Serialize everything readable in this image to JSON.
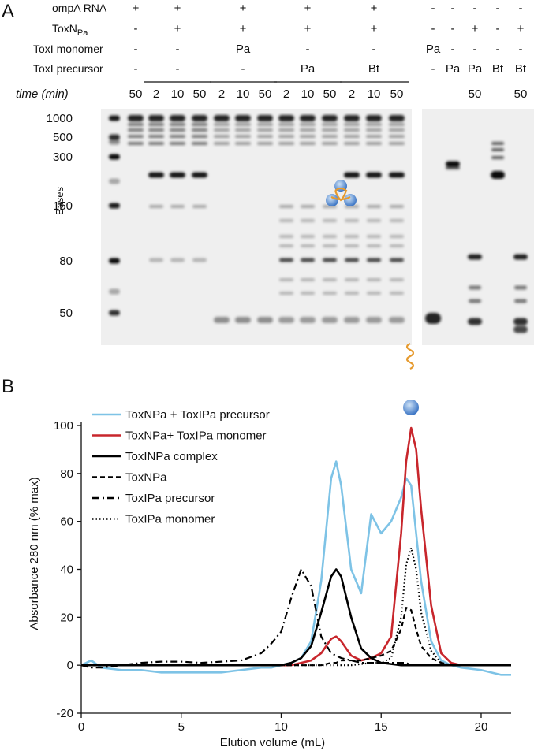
{
  "panel_a": {
    "label": "A",
    "rows": [
      {
        "label": "ompA RNA"
      },
      {
        "main": "ToxN",
        "sub": "Pa"
      },
      {
        "label": "ToxI monomer"
      },
      {
        "label": "ToxI precursor"
      },
      {
        "label": "time (min)"
      }
    ],
    "groups": [
      {
        "marks": [
          "+",
          "-",
          "-",
          "-"
        ],
        "times": [
          50
        ]
      },
      {
        "marks": [
          "+",
          "+",
          "-",
          "-"
        ],
        "times": [
          2,
          10,
          50
        ]
      },
      {
        "marks": [
          "+",
          "+",
          "Pa",
          "-"
        ],
        "times": [
          2,
          10,
          50
        ]
      },
      {
        "marks": [
          "+",
          "+",
          "-",
          "Pa"
        ],
        "times": [
          2,
          10,
          50
        ]
      },
      {
        "marks": [
          "+",
          "+",
          "-",
          "Bt"
        ],
        "times": [
          2,
          10,
          50
        ]
      }
    ],
    "right_lanes": [
      {
        "marks": [
          "-",
          "-",
          "Pa",
          "-"
        ]
      },
      {
        "marks": [
          "-",
          "-",
          "-",
          "Pa"
        ]
      },
      {
        "marks": [
          "-",
          "+",
          "-",
          "Pa"
        ],
        "time": 50
      },
      {
        "marks": [
          "-",
          "-",
          "-",
          "Bt"
        ]
      },
      {
        "marks": [
          "-",
          "+",
          "-",
          "Bt"
        ],
        "time": 50
      }
    ],
    "ladder": [
      1000,
      500,
      300,
      150,
      80,
      50
    ],
    "ladder_axis": "Bases"
  },
  "panel_b_label": "B",
  "chart_data": {
    "type": "line",
    "xlabel": "Elution volume (mL)",
    "ylabel": "Absorbance 280 nm (% max)",
    "xlim": [
      0,
      21.5
    ],
    "ylim": [
      -20,
      100
    ],
    "xticks": [
      0,
      5,
      10,
      15,
      20
    ],
    "yticks": [
      -20,
      0,
      20,
      40,
      60,
      80,
      100
    ],
    "legend": "upper left",
    "x": [
      0,
      0.5,
      1,
      2,
      3,
      4,
      5,
      6,
      7,
      8,
      9,
      9.5,
      10,
      10.5,
      11,
      11.5,
      12,
      12.5,
      12.75,
      13,
      13.5,
      14,
      14.5,
      15,
      15.5,
      16,
      16.25,
      16.5,
      16.75,
      17,
      17.5,
      18,
      18.5,
      19,
      20,
      21,
      21.5
    ],
    "series": [
      {
        "name": "ToxNPa + ToxIPa precursor",
        "color": "#7ec3e6",
        "style": "solid",
        "values": [
          0,
          2,
          -1,
          -2,
          -2,
          -3,
          -3,
          -3,
          -3,
          -2,
          -1,
          -1,
          0,
          1,
          3,
          10,
          35,
          78,
          85,
          75,
          40,
          30,
          63,
          55,
          60,
          70,
          78,
          75,
          55,
          35,
          10,
          2,
          0,
          -1,
          -2,
          -4,
          -4
        ]
      },
      {
        "name": "ToxNPa+ ToxIPa monomer",
        "color": "#c8262c",
        "style": "solid",
        "values": [
          0,
          0,
          0,
          0,
          0,
          0,
          0,
          0,
          0,
          0,
          0,
          0,
          0,
          0,
          1,
          2,
          5,
          11,
          12,
          10,
          4,
          2,
          3,
          5,
          12,
          55,
          85,
          99,
          90,
          65,
          25,
          5,
          1,
          0,
          0,
          0,
          0
        ]
      },
      {
        "name": "ToxINPa complex",
        "color": "#000000",
        "style": "solid",
        "values": [
          0,
          0,
          0,
          0,
          0,
          0,
          0,
          0,
          0,
          0,
          0,
          0,
          0,
          1,
          3,
          8,
          22,
          37,
          40,
          37,
          20,
          7,
          3,
          1,
          0.5,
          0,
          0,
          0,
          0,
          0,
          0,
          0,
          0,
          0,
          0,
          0,
          0
        ]
      },
      {
        "name": "ToxNPa",
        "color": "#000000",
        "style": "dashed",
        "values": [
          0,
          0,
          0,
          0,
          0,
          0,
          0,
          0,
          0,
          0,
          0,
          0,
          0,
          0,
          0,
          0,
          0,
          1,
          1,
          2,
          2,
          2,
          3,
          4,
          6,
          15,
          24,
          23,
          15,
          8,
          3,
          1,
          0,
          0,
          0,
          0,
          0
        ]
      },
      {
        "name": "ToxIPa precursor",
        "color": "#000000",
        "style": "dashdot",
        "values": [
          0,
          -1,
          -1,
          0,
          1,
          1.5,
          1.5,
          1,
          1.5,
          2,
          5,
          9,
          14,
          28,
          40,
          33,
          12,
          5,
          4,
          3,
          2,
          1,
          1,
          1,
          1,
          1,
          1,
          0,
          0,
          0,
          0,
          0,
          0,
          0,
          0,
          0,
          0
        ]
      },
      {
        "name": "ToxIPa monomer",
        "color": "#000000",
        "style": "dotted",
        "values": [
          0,
          0,
          0,
          0,
          0,
          0,
          0,
          0,
          0,
          0,
          0,
          0,
          0,
          0,
          0,
          0,
          0,
          0,
          0,
          0,
          0,
          0.5,
          1,
          1,
          3,
          20,
          42,
          49,
          40,
          22,
          6,
          1,
          0,
          0,
          0,
          0,
          0
        ]
      }
    ]
  }
}
